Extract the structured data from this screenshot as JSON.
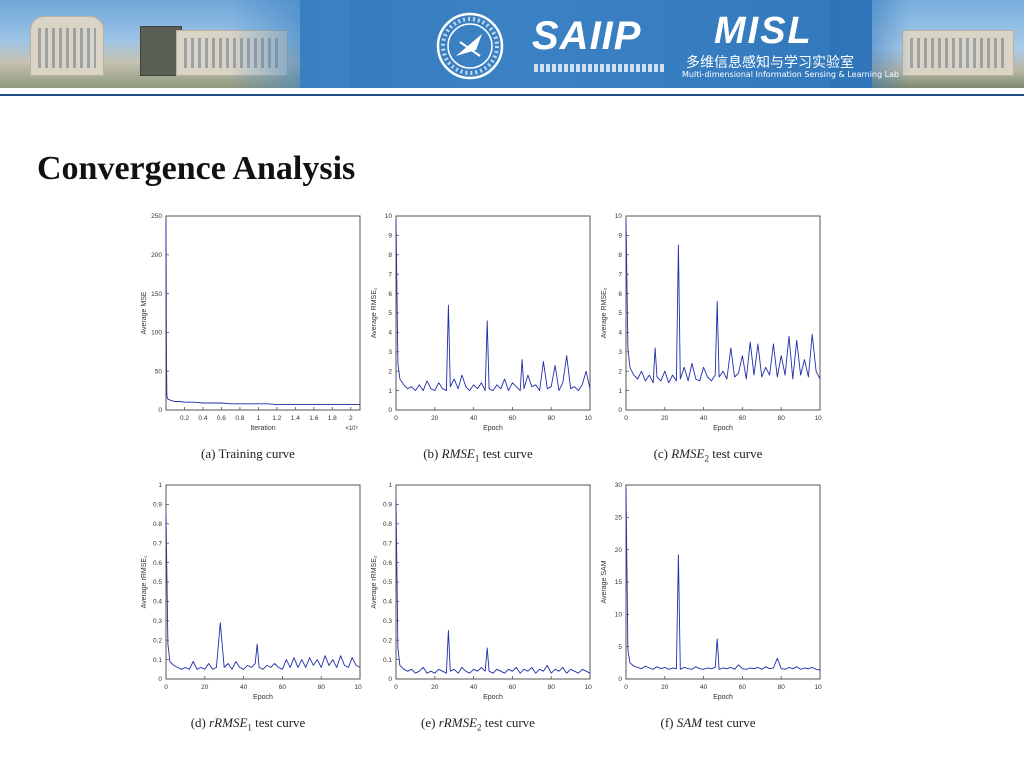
{
  "banner": {
    "saiip_logo_text": "SAIIP",
    "saiip_subtitle": "陕西省语音与图像信息处理重点实验室",
    "misl_logo_text": "MISL",
    "misl_cn": "多维信息感知与学习实验室",
    "misl_en": "Multi-dimensional Information Sensing & Learning Lab",
    "primary_color": "#3b82c4"
  },
  "slide": {
    "title": "Convergence Analysis"
  },
  "chart_data": [
    {
      "id": "a",
      "type": "line",
      "caption_prefix": "(a)",
      "caption_math": "",
      "caption_suffix": "Training curve",
      "xlabel": "Iteration",
      "ylabel": "Average MSE",
      "x_exponent": "×10⁵",
      "xlim": [
        0,
        2.1
      ],
      "ylim": [
        0,
        250
      ],
      "xticks": [
        0.2,
        0.4,
        0.6,
        0.8,
        1,
        1.2,
        1.4,
        1.6,
        1.8,
        2
      ],
      "yticks": [
        0,
        50,
        100,
        150,
        200,
        250
      ],
      "color": "#1f2fa8",
      "series": [
        {
          "x": [
            0,
            0.005,
            0.01,
            0.02,
            0.04,
            0.06,
            0.1,
            0.15,
            0.2,
            0.3,
            0.4,
            0.5,
            0.6,
            0.7,
            0.8,
            0.9,
            1.0,
            1.1,
            1.2,
            1.3,
            1.4,
            1.5,
            1.6,
            1.7,
            1.8,
            1.9,
            2.0,
            2.1
          ],
          "y": [
            245,
            60,
            18,
            14,
            13,
            12,
            11,
            11,
            10,
            10,
            9,
            9,
            9,
            8,
            8,
            8,
            8,
            8,
            7,
            7,
            7,
            7,
            7,
            7,
            7,
            7,
            7,
            7
          ]
        }
      ]
    },
    {
      "id": "b",
      "type": "line",
      "caption_prefix": "(b)",
      "caption_math": "RMSE",
      "caption_sub": "1",
      "caption_suffix": "test curve",
      "xlabel": "Epoch",
      "ylabel": "Average RMSE₁",
      "xlim": [
        0,
        100
      ],
      "ylim": [
        0,
        10
      ],
      "xticks": [
        0,
        20,
        40,
        60,
        80,
        100
      ],
      "yticks": [
        0,
        1,
        2,
        3,
        4,
        5,
        6,
        7,
        8,
        9,
        10
      ],
      "color": "#1f2fa8",
      "series": [
        {
          "x": [
            0,
            1,
            2,
            4,
            6,
            8,
            10,
            12,
            14,
            16,
            18,
            20,
            22,
            24,
            26,
            27,
            28,
            30,
            32,
            34,
            36,
            38,
            40,
            42,
            44,
            46,
            47,
            48,
            50,
            52,
            54,
            56,
            58,
            60,
            62,
            64,
            65,
            66,
            68,
            70,
            72,
            74,
            76,
            78,
            80,
            82,
            84,
            86,
            88,
            90,
            92,
            94,
            96,
            98,
            100
          ],
          "y": [
            9.8,
            2.4,
            1.6,
            1.3,
            1.1,
            1.2,
            1.0,
            1.3,
            1.0,
            1.5,
            1.1,
            1.0,
            1.4,
            1.1,
            1.0,
            5.4,
            1.2,
            1.6,
            1.1,
            1.8,
            1.2,
            1.0,
            1.3,
            1.1,
            1.4,
            1.0,
            4.6,
            1.1,
            1.0,
            1.3,
            1.1,
            1.6,
            1.0,
            1.4,
            1.2,
            1.0,
            2.6,
            1.1,
            1.8,
            1.2,
            1.3,
            1.0,
            2.5,
            1.1,
            1.2,
            2.3,
            1.0,
            1.4,
            2.8,
            1.1,
            1.2,
            1.0,
            1.3,
            2.0,
            1.1
          ]
        }
      ]
    },
    {
      "id": "c",
      "type": "line",
      "caption_prefix": "(c)",
      "caption_math": "RMSE",
      "caption_sub": "2",
      "caption_suffix": "test curve",
      "xlabel": "Epoch",
      "ylabel": "Average RMSE₂",
      "xlim": [
        0,
        100
      ],
      "ylim": [
        0,
        10
      ],
      "xticks": [
        0,
        20,
        40,
        60,
        80,
        100
      ],
      "yticks": [
        0,
        1,
        2,
        3,
        4,
        5,
        6,
        7,
        8,
        9,
        10
      ],
      "color": "#1f2fa8",
      "series": [
        {
          "x": [
            0,
            1,
            2,
            4,
            6,
            8,
            10,
            12,
            14,
            15,
            16,
            18,
            20,
            22,
            24,
            26,
            27,
            28,
            30,
            32,
            34,
            36,
            38,
            40,
            42,
            44,
            46,
            47,
            48,
            50,
            52,
            54,
            56,
            58,
            60,
            62,
            64,
            66,
            68,
            70,
            72,
            74,
            76,
            78,
            80,
            82,
            84,
            86,
            88,
            90,
            92,
            94,
            96,
            98,
            100
          ],
          "y": [
            9.8,
            3.2,
            2.2,
            1.8,
            1.6,
            2.0,
            1.5,
            1.8,
            1.4,
            3.2,
            1.7,
            1.5,
            2.0,
            1.4,
            1.8,
            1.5,
            8.5,
            1.6,
            2.2,
            1.5,
            2.4,
            1.6,
            1.5,
            2.2,
            1.7,
            1.5,
            1.8,
            5.6,
            1.7,
            2.0,
            1.6,
            3.2,
            1.7,
            1.9,
            2.8,
            1.6,
            3.5,
            1.8,
            3.4,
            1.7,
            2.2,
            1.8,
            3.4,
            1.7,
            2.8,
            1.8,
            3.8,
            1.6,
            3.6,
            1.8,
            2.6,
            1.7,
            3.9,
            2.0,
            1.6
          ]
        }
      ]
    },
    {
      "id": "d",
      "type": "line",
      "caption_prefix": "(d)",
      "caption_math": "rRMSE",
      "caption_sub": "1",
      "caption_suffix": "test curve",
      "xlabel": "Epoch",
      "ylabel": "Average rRMSE₁",
      "xlim": [
        0,
        100
      ],
      "ylim": [
        0,
        1
      ],
      "xticks": [
        0,
        20,
        40,
        60,
        80,
        100
      ],
      "yticks": [
        0,
        0.1,
        0.2,
        0.3,
        0.4,
        0.5,
        0.6,
        0.7,
        0.8,
        0.9,
        1
      ],
      "color": "#1f2fa8",
      "series": [
        {
          "x": [
            0,
            1,
            2,
            4,
            6,
            8,
            10,
            12,
            14,
            16,
            18,
            20,
            22,
            24,
            26,
            28,
            30,
            32,
            34,
            36,
            38,
            40,
            42,
            44,
            46,
            47,
            48,
            50,
            52,
            54,
            56,
            58,
            60,
            62,
            64,
            66,
            68,
            70,
            72,
            74,
            76,
            78,
            80,
            82,
            84,
            86,
            88,
            90,
            92,
            94,
            96,
            98,
            100
          ],
          "y": [
            0.85,
            0.18,
            0.09,
            0.07,
            0.06,
            0.05,
            0.06,
            0.05,
            0.09,
            0.05,
            0.06,
            0.05,
            0.08,
            0.05,
            0.06,
            0.29,
            0.06,
            0.08,
            0.05,
            0.09,
            0.06,
            0.05,
            0.07,
            0.06,
            0.08,
            0.18,
            0.06,
            0.05,
            0.07,
            0.06,
            0.08,
            0.06,
            0.05,
            0.1,
            0.06,
            0.11,
            0.06,
            0.1,
            0.06,
            0.11,
            0.07,
            0.1,
            0.06,
            0.12,
            0.07,
            0.1,
            0.06,
            0.12,
            0.07,
            0.06,
            0.11,
            0.07,
            0.06
          ]
        }
      ]
    },
    {
      "id": "e",
      "type": "line",
      "caption_prefix": "(e)",
      "caption_math": "rRMSE",
      "caption_sub": "2",
      "caption_suffix": "test curve",
      "xlabel": "Epoch",
      "ylabel": "Average rRMSE₂",
      "xlim": [
        0,
        100
      ],
      "ylim": [
        0,
        1
      ],
      "xticks": [
        0,
        20,
        40,
        60,
        80,
        100
      ],
      "yticks": [
        0,
        0.1,
        0.2,
        0.3,
        0.4,
        0.5,
        0.6,
        0.7,
        0.8,
        0.9,
        1
      ],
      "color": "#1f2fa8",
      "series": [
        {
          "x": [
            0,
            1,
            2,
            4,
            6,
            8,
            10,
            12,
            14,
            16,
            18,
            20,
            22,
            24,
            26,
            27,
            28,
            30,
            32,
            34,
            36,
            38,
            40,
            42,
            44,
            46,
            47,
            48,
            50,
            52,
            54,
            56,
            58,
            60,
            62,
            64,
            66,
            68,
            70,
            72,
            74,
            76,
            78,
            80,
            82,
            84,
            86,
            88,
            90,
            92,
            94,
            96,
            98,
            100
          ],
          "y": [
            0.92,
            0.16,
            0.07,
            0.05,
            0.04,
            0.05,
            0.03,
            0.04,
            0.06,
            0.03,
            0.04,
            0.03,
            0.05,
            0.04,
            0.03,
            0.25,
            0.04,
            0.05,
            0.03,
            0.06,
            0.04,
            0.03,
            0.05,
            0.04,
            0.06,
            0.04,
            0.16,
            0.04,
            0.03,
            0.05,
            0.04,
            0.03,
            0.05,
            0.04,
            0.06,
            0.03,
            0.05,
            0.04,
            0.06,
            0.03,
            0.05,
            0.04,
            0.07,
            0.03,
            0.05,
            0.04,
            0.06,
            0.03,
            0.05,
            0.04,
            0.03,
            0.05,
            0.04,
            0.03
          ]
        }
      ]
    },
    {
      "id": "f",
      "type": "line",
      "caption_prefix": "(f)",
      "caption_math": "SAM",
      "caption_suffix": "test curve",
      "xlabel": "Epoch",
      "ylabel": "Average SAM",
      "xlim": [
        0,
        100
      ],
      "ylim": [
        0,
        30
      ],
      "xticks": [
        0,
        20,
        40,
        60,
        80,
        100
      ],
      "yticks": [
        0,
        5,
        10,
        15,
        20,
        25,
        30
      ],
      "color": "#1f2fa8",
      "series": [
        {
          "x": [
            0,
            1,
            2,
            4,
            6,
            8,
            10,
            12,
            14,
            16,
            18,
            20,
            22,
            24,
            26,
            27,
            28,
            30,
            32,
            34,
            36,
            38,
            40,
            42,
            44,
            46,
            47,
            48,
            50,
            52,
            54,
            56,
            58,
            60,
            62,
            64,
            66,
            68,
            70,
            72,
            74,
            76,
            78,
            80,
            82,
            84,
            86,
            88,
            90,
            92,
            94,
            96,
            98,
            100
          ],
          "y": [
            29.5,
            4.5,
            2.5,
            2.0,
            1.8,
            1.6,
            2.0,
            1.7,
            1.5,
            1.9,
            1.6,
            1.8,
            1.5,
            1.7,
            1.6,
            19.2,
            1.5,
            1.8,
            1.6,
            1.5,
            1.9,
            1.6,
            1.5,
            1.7,
            1.6,
            1.8,
            6.2,
            1.5,
            1.7,
            1.6,
            1.8,
            1.5,
            2.2,
            1.6,
            1.5,
            1.7,
            1.6,
            1.8,
            1.5,
            1.9,
            1.6,
            1.7,
            3.2,
            1.6,
            1.5,
            1.8,
            1.6,
            1.9,
            1.5,
            1.7,
            1.6,
            1.8,
            1.5,
            1.4
          ]
        }
      ]
    }
  ]
}
